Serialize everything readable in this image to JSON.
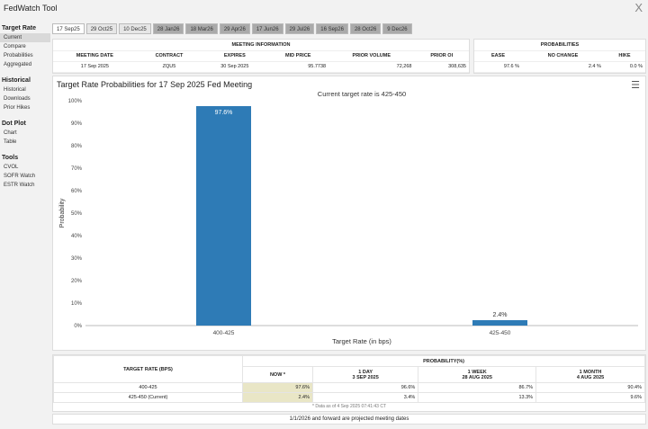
{
  "app": {
    "title": "FedWatch Tool",
    "close_label": "X"
  },
  "sidebar": [
    {
      "heading": "Target Rate",
      "items": [
        "Current",
        "Compare",
        "Probabilities",
        "Aggregated"
      ]
    },
    {
      "heading": "Historical",
      "items": [
        "Historical",
        "Downloads",
        "Prior Hikes"
      ]
    },
    {
      "heading": "Dot Plot",
      "items": [
        "Chart",
        "Table"
      ]
    },
    {
      "heading": "Tools",
      "items": [
        "CVOL",
        "SOFR Watch",
        "ESTR Watch"
      ]
    }
  ],
  "tabs": [
    "17 Sep25",
    "29 Oct25",
    "10 Dec25",
    "28 Jan26",
    "18 Mar26",
    "29 Apr26",
    "17 Jun26",
    "29 Jul26",
    "16 Sep26",
    "28 Oct26",
    "9 Dec26"
  ],
  "meeting_info": {
    "header": "MEETING INFORMATION",
    "columns": [
      "MEETING DATE",
      "CONTRACT",
      "EXPIRES",
      "MID PRICE",
      "PRIOR VOLUME",
      "PRIOR OI"
    ],
    "values": [
      "17 Sep 2025",
      "ZQU5",
      "30 Sep 2025",
      "95.7738",
      "72,268",
      "308,635"
    ]
  },
  "probabilities": {
    "header": "PROBABILITIES",
    "columns": [
      "EASE",
      "NO CHANGE",
      "HIKE"
    ],
    "values": [
      "97.6 %",
      "2.4 %",
      "0.0 %"
    ]
  },
  "chart": {
    "title": "Target Rate Probabilities for 17 Sep 2025 Fed Meeting",
    "menu_icon": "hamburger-icon"
  },
  "chart_data": {
    "type": "bar",
    "subtitle": "Current target rate is 425-450",
    "categories": [
      "400-425",
      "425-450"
    ],
    "values": [
      97.6,
      2.4
    ],
    "data_labels": [
      "97.6%",
      "2.4%"
    ],
    "xlabel": "Target Rate (in bps)",
    "ylabel": "Probability",
    "ylim": [
      0,
      100
    ],
    "yticks": [
      "0%",
      "10%",
      "20%",
      "30%",
      "40%",
      "50%",
      "60%",
      "70%",
      "80%",
      "90%",
      "100%"
    ],
    "bar_color": "#2e7bb6",
    "grid": false
  },
  "bottom_table": {
    "col_target": "TARGET RATE (BPS)",
    "col_prob": "PROBABILITY(%)",
    "sub_cols": [
      {
        "line1": "NOW *",
        "line2": ""
      },
      {
        "line1": "1 DAY",
        "line2": "3 SEP 2025"
      },
      {
        "line1": "1 WEEK",
        "line2": "28 AUG 2025"
      },
      {
        "line1": "1 MONTH",
        "line2": "4 AUG 2025"
      }
    ],
    "rows": [
      {
        "rate": "400-425",
        "vals": [
          "97.6%",
          "96.6%",
          "86.7%",
          "90.4%"
        ]
      },
      {
        "rate": "425-450 (Current)",
        "vals": [
          "2.4%",
          "3.4%",
          "13.3%",
          "9.6%"
        ]
      }
    ],
    "note": "* Data as of 4 Sep 2025 07:41:43 CT"
  },
  "footer": "1/1/2026 and forward are projected meeting dates"
}
